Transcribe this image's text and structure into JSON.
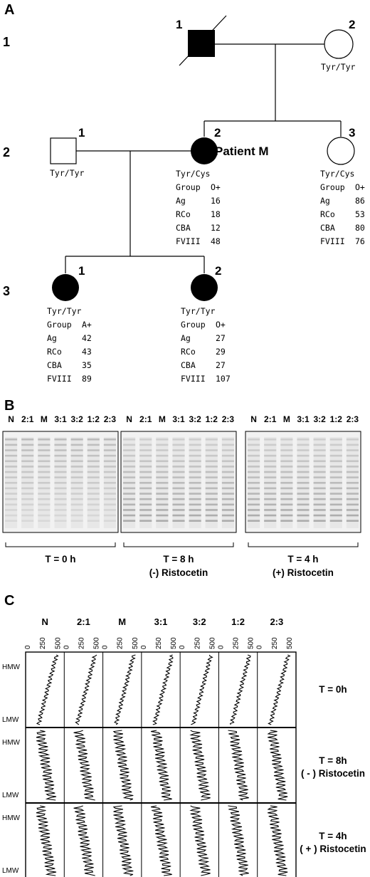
{
  "panel_labels": {
    "a": "A",
    "b": "B",
    "c": "C"
  },
  "pedigree": {
    "generations": [
      "1",
      "2",
      "3"
    ],
    "gen1": {
      "father": {
        "num": "1",
        "affected": true,
        "deceased": true
      },
      "mother": {
        "num": "2",
        "genotype": "Tyr/Tyr"
      }
    },
    "gen2": {
      "husband": {
        "num": "1",
        "genotype": "Tyr/Tyr"
      },
      "patient": {
        "num": "2",
        "name": "Patient M",
        "genotype": "Tyr/Cys",
        "rows": [
          [
            "Group",
            "O+"
          ],
          [
            "Ag",
            "16"
          ],
          [
            "RCo",
            "18"
          ],
          [
            "CBA",
            "12"
          ],
          [
            "FVIII",
            "48"
          ]
        ]
      },
      "sister": {
        "num": "3",
        "genotype": "Tyr/Cys",
        "rows": [
          [
            "Group",
            "O+"
          ],
          [
            "Ag",
            "86"
          ],
          [
            "RCo",
            "53"
          ],
          [
            "CBA",
            "80"
          ],
          [
            "FVIII",
            "76"
          ]
        ]
      }
    },
    "gen3": {
      "daughter1": {
        "num": "1",
        "genotype": "Tyr/Tyr",
        "rows": [
          [
            "Group",
            "A+"
          ],
          [
            "Ag",
            "42"
          ],
          [
            "RCo",
            "43"
          ],
          [
            "CBA",
            "35"
          ],
          [
            "FVIII",
            "89"
          ]
        ]
      },
      "daughter2": {
        "num": "2",
        "genotype": "Tyr/Tyr",
        "rows": [
          [
            "Group",
            "O+"
          ],
          [
            "Ag",
            "27"
          ],
          [
            "RCo",
            "29"
          ],
          [
            "CBA",
            "27"
          ],
          [
            "FVIII",
            "107"
          ]
        ]
      }
    }
  },
  "gels": {
    "lanes": [
      "N",
      "2:1",
      "M",
      "3:1",
      "3:2",
      "1:2",
      "2:3"
    ],
    "captions": [
      {
        "line1": "T = 0 h",
        "line2": ""
      },
      {
        "line1": "T = 8 h",
        "line2": "(-) Ristocetin"
      },
      {
        "line1": "T = 4 h",
        "line2": "(+) Ristocetin"
      }
    ]
  },
  "densitometry": {
    "columns": [
      "N",
      "2:1",
      "M",
      "3:1",
      "3:2",
      "1:2",
      "2:3"
    ],
    "ticks": [
      "0",
      "250",
      "500"
    ],
    "row_axis": {
      "top": "HMW",
      "bottom": "LMW"
    },
    "rows": [
      {
        "line1": "T = 0h",
        "line2": ""
      },
      {
        "line1": "T = 8h",
        "line2": "( - ) Ristocetin"
      },
      {
        "line1": "T = 4h",
        "line2": "( + ) Ristocetin"
      }
    ]
  }
}
